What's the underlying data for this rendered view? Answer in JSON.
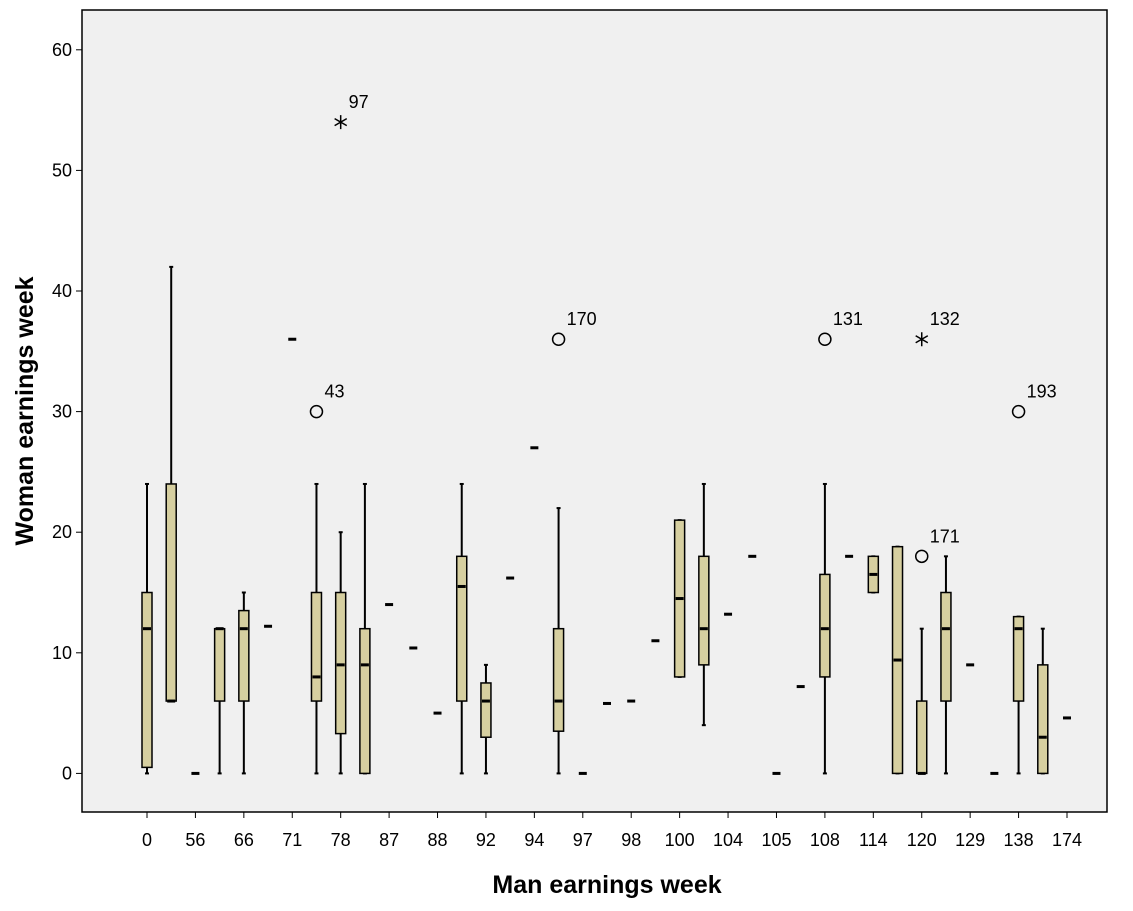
{
  "chart_data": {
    "type": "boxplot",
    "x_label": "Man earnings week",
    "y_label": "Woman earnings week",
    "categories": [
      "0",
      null,
      "56",
      null,
      "66",
      null,
      "71",
      null,
      "78",
      null,
      "87",
      null,
      "88",
      null,
      "92",
      null,
      "94",
      null,
      "97",
      null,
      "98",
      null,
      "100",
      null,
      "104",
      null,
      "105",
      null,
      "108",
      null,
      "114",
      null,
      "120",
      null,
      "129",
      null,
      "138",
      null,
      "174"
    ],
    "boxes": [
      {
        "min": 0,
        "q1": 0.5,
        "median": 12,
        "q3": 15,
        "max": 24
      },
      {
        "min": 6,
        "q1": 6,
        "median": 6,
        "q3": 24,
        "max": 42
      },
      {
        "median": 0
      },
      {
        "min": 0,
        "q1": 6,
        "median": 12,
        "q3": 12,
        "max": 12
      },
      {
        "min": 0,
        "q1": 6,
        "median": 12,
        "q3": 13.5,
        "max": 15
      },
      {
        "median": 12.2
      },
      {
        "median": 36
      },
      {
        "min": 0,
        "q1": 6,
        "median": 8,
        "q3": 15,
        "max": 24,
        "outliers": [
          {
            "value": 30,
            "label": "43"
          }
        ]
      },
      {
        "min": 0,
        "q1": 3.3,
        "median": 9,
        "q3": 15,
        "max": 20,
        "extremes": [
          {
            "value": 54,
            "label": "97"
          }
        ]
      },
      {
        "min": 0,
        "q1": 0,
        "median": 9,
        "q3": 12,
        "max": 24
      },
      {
        "median": 14
      },
      {
        "median": 10.4
      },
      {
        "median": 5
      },
      {
        "min": 0,
        "q1": 6,
        "median": 15.5,
        "q3": 18,
        "max": 24
      },
      {
        "min": 0,
        "q1": 3,
        "median": 6,
        "q3": 7.5,
        "max": 9
      },
      {
        "median": 16.2
      },
      {
        "median": 27
      },
      {
        "min": 0,
        "q1": 3.5,
        "median": 6,
        "q3": 12,
        "max": 22,
        "outliers": [
          {
            "value": 36,
            "label": "170"
          }
        ]
      },
      {
        "median": 0
      },
      {
        "median": 5.8
      },
      {
        "median": 6
      },
      {
        "median": 11
      },
      {
        "min": 8,
        "q1": 8,
        "median": 14.5,
        "q3": 21,
        "max": 21
      },
      {
        "min": 4,
        "q1": 9,
        "median": 12,
        "q3": 18,
        "max": 24
      },
      {
        "median": 13.2
      },
      {
        "median": 18
      },
      {
        "median": 0
      },
      {
        "median": 7.2
      },
      {
        "min": 0,
        "q1": 8,
        "median": 12,
        "q3": 16.5,
        "max": 24,
        "outliers": [
          {
            "value": 36,
            "label": "131"
          }
        ]
      },
      {
        "median": 18
      },
      {
        "min": 15,
        "q1": 15,
        "median": 16.5,
        "q3": 18,
        "max": 18
      },
      {
        "min": 0,
        "q1": 0,
        "median": 9.4,
        "q3": 18.8,
        "max": 18.8
      },
      {
        "min": 0,
        "q1": 0,
        "median": 0,
        "q3": 6,
        "max": 12,
        "outliers": [
          {
            "value": 18,
            "label": "171"
          }
        ],
        "extremes": [
          {
            "value": 36,
            "label": "132"
          }
        ]
      },
      {
        "min": 0,
        "q1": 6,
        "median": 12,
        "q3": 15,
        "max": 18
      },
      {
        "median": 9
      },
      {
        "median": 0
      },
      {
        "min": 0,
        "q1": 6,
        "median": 12,
        "q3": 13,
        "max": 13,
        "outliers": [
          {
            "value": 30,
            "label": "193"
          }
        ]
      },
      {
        "min": 0,
        "q1": 0,
        "median": 3,
        "q3": 9,
        "max": 12
      },
      {
        "median": 4.6
      }
    ],
    "color": "#d6cfa0",
    "ylim": [
      -3.2,
      63.3
    ],
    "yticks": [
      0,
      10,
      20,
      30,
      40,
      50,
      60
    ]
  }
}
